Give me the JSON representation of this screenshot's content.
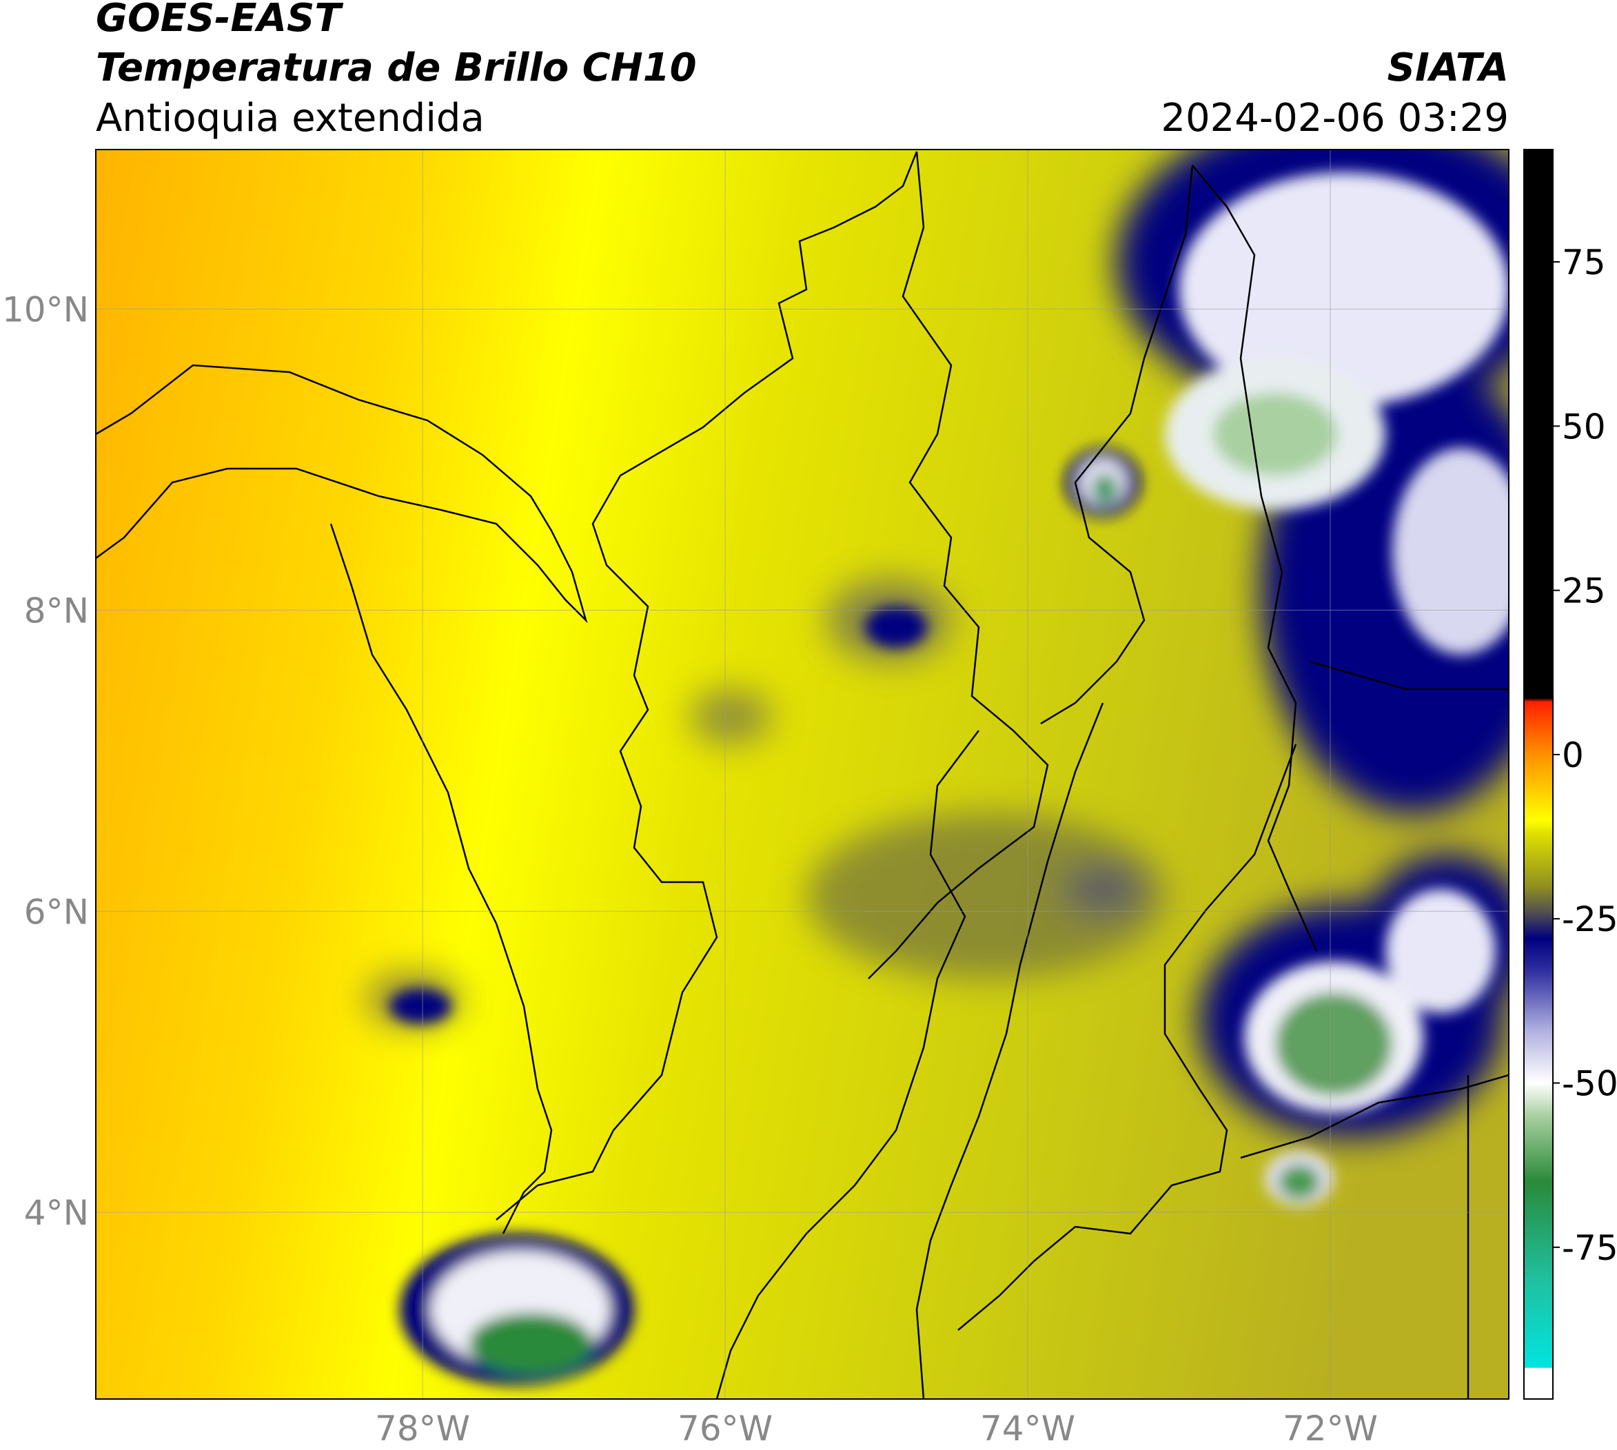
{
  "header": {
    "satellite": "GOES-EAST",
    "product": "Temperatura de Brillo CH10",
    "region": "Antioquia extendida",
    "source": "SIATA",
    "datetime": "2024-02-06 03:29"
  },
  "chart_data": {
    "type": "map",
    "xlim": [
      -80.16,
      -70.82
    ],
    "ylim": [
      2.76,
      11.06
    ],
    "xticks": [
      {
        "value": -78,
        "label": "78°W"
      },
      {
        "value": -76,
        "label": "76°W"
      },
      {
        "value": -74,
        "label": "74°W"
      },
      {
        "value": -72,
        "label": "72°W"
      }
    ],
    "yticks": [
      {
        "value": 4,
        "label": "4°N"
      },
      {
        "value": 6,
        "label": "6°N"
      },
      {
        "value": 8,
        "label": "8°N"
      },
      {
        "value": 10,
        "label": "10°N"
      }
    ],
    "grid": true,
    "colorbar": {
      "lim": [
        -98.1,
        92.1
      ],
      "ticks": [
        -75,
        -50,
        -25,
        0,
        25,
        50,
        75
      ],
      "stops": [
        {
          "value": -98.1,
          "color": "#ffffff"
        },
        {
          "value": -93.4,
          "color": "#ffffff"
        },
        {
          "value": -93.3,
          "color": "#00e5e0"
        },
        {
          "value": -80,
          "color": "#20c0a0"
        },
        {
          "value": -65,
          "color": "#2a8a3a"
        },
        {
          "value": -55,
          "color": "#a8d0a0"
        },
        {
          "value": -50,
          "color": "#ffffff"
        },
        {
          "value": -42,
          "color": "#b0b0e0"
        },
        {
          "value": -33,
          "color": "#3030a0"
        },
        {
          "value": -28,
          "color": "#000080"
        },
        {
          "value": -24,
          "color": "#505050"
        },
        {
          "value": -20,
          "color": "#909020"
        },
        {
          "value": -12,
          "color": "#e0e000"
        },
        {
          "value": -10,
          "color": "#ffff00"
        },
        {
          "value": 0,
          "color": "#ff9000"
        },
        {
          "value": 8,
          "color": "#ff2000"
        },
        {
          "value": 8.6,
          "color": "#000000"
        },
        {
          "value": 92.1,
          "color": "#000000"
        }
      ]
    }
  }
}
